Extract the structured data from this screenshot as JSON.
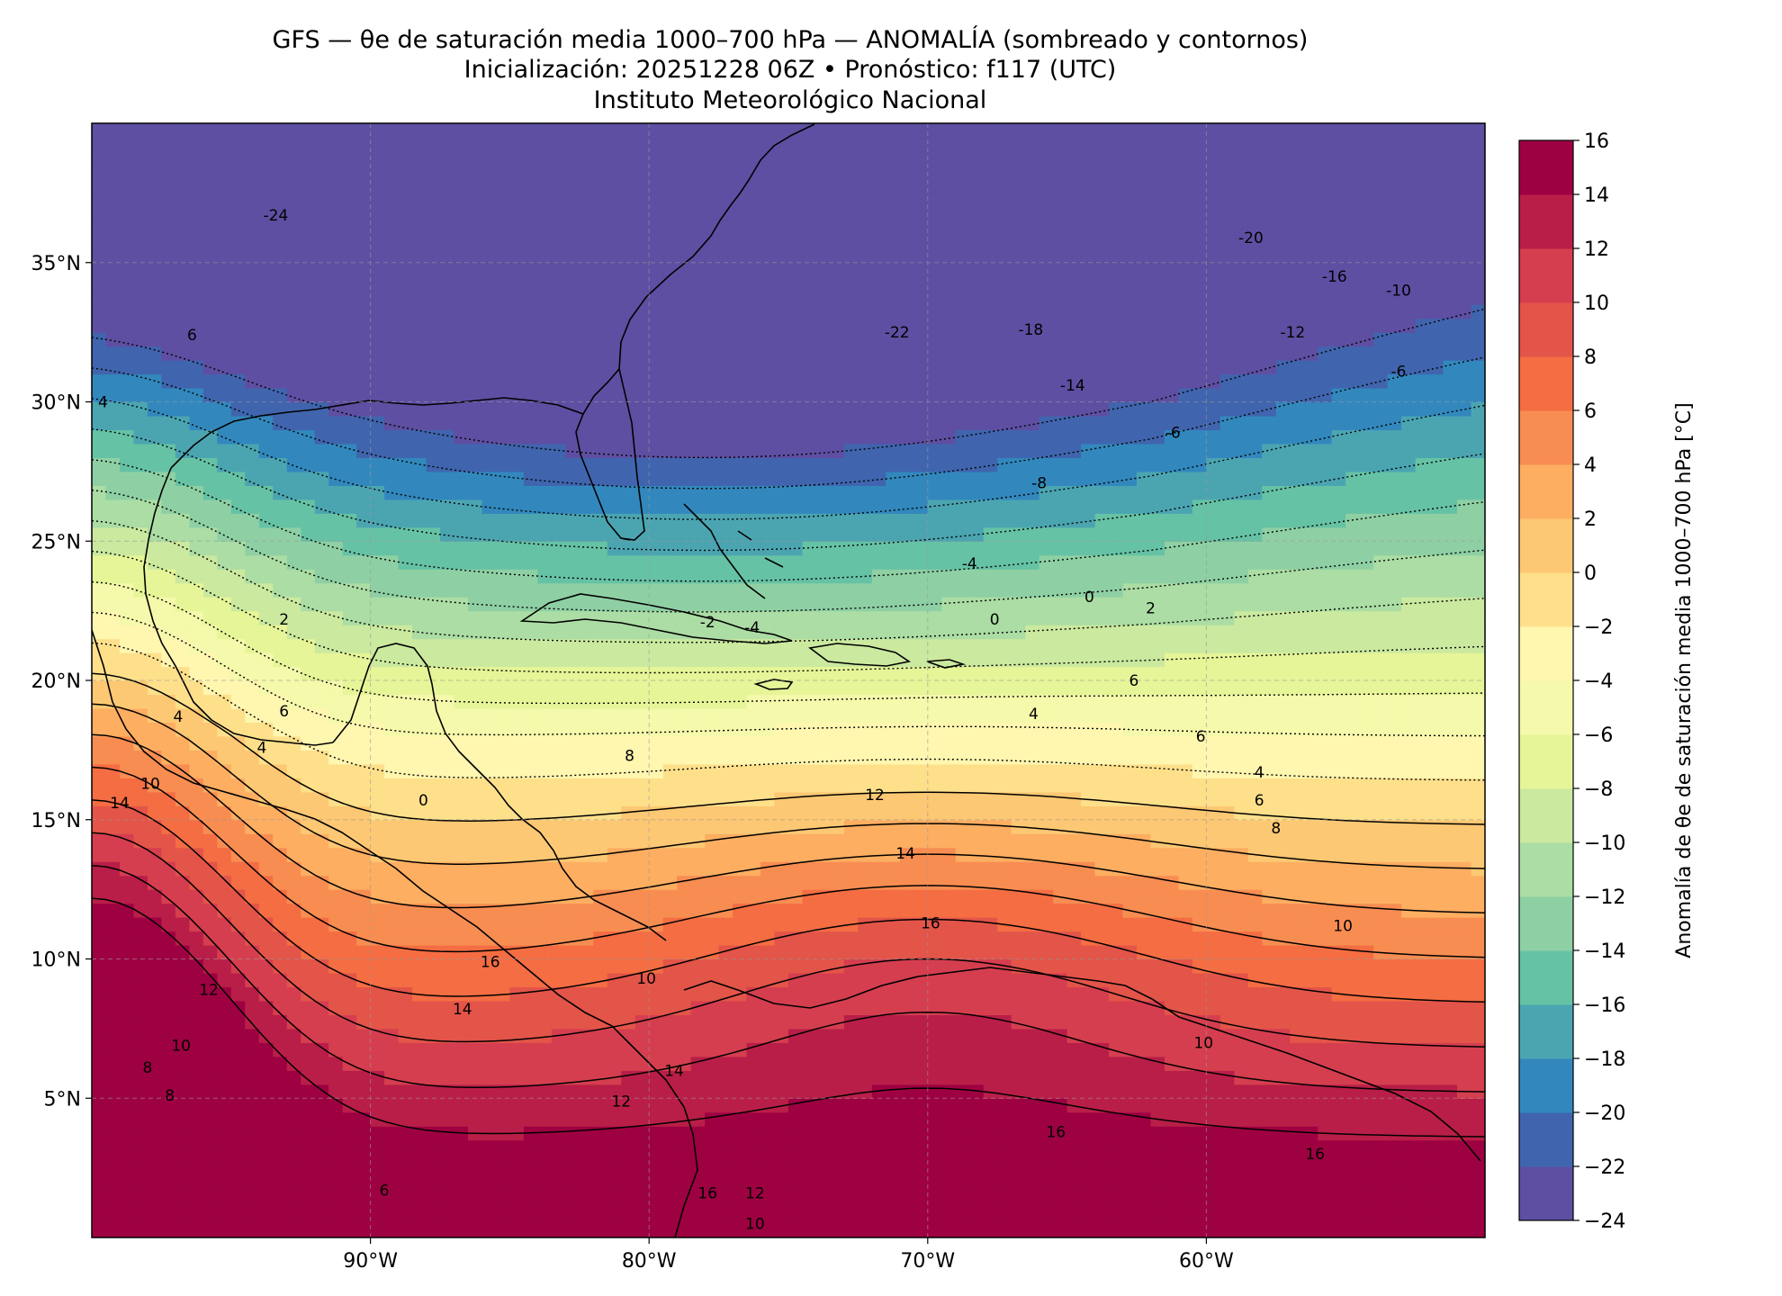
{
  "title": {
    "line1": "GFS — θe de saturación media 1000–700 hPa — ANOMALÍA (sombreado y contornos)",
    "line2": "Inicialización: 20251228 06Z   •   Pronóstico: f117 (UTC)",
    "line3": "Instituto Meteorológico Nacional"
  },
  "map": {
    "lon_range": [
      -100,
      -50
    ],
    "lat_range": [
      0,
      40
    ],
    "lon_ticks": [
      {
        "value": -90,
        "label": "90°W"
      },
      {
        "value": -80,
        "label": "80°W"
      },
      {
        "value": -70,
        "label": "70°W"
      },
      {
        "value": -60,
        "label": "60°W"
      }
    ],
    "lat_ticks": [
      {
        "value": 35,
        "label": "35°N"
      },
      {
        "value": 30,
        "label": "30°N"
      },
      {
        "value": 25,
        "label": "25°N"
      },
      {
        "value": 20,
        "label": "20°N"
      },
      {
        "value": 15,
        "label": "15°N"
      },
      {
        "value": 10,
        "label": "10°N"
      },
      {
        "value": 5,
        "label": "5°N"
      }
    ],
    "gridlines": true
  },
  "colorbar": {
    "title": "Anomalía de θe de saturación media 1000–700 hPa [°C]",
    "levels": [
      -24,
      -22,
      -20,
      -18,
      -16,
      -14,
      -12,
      -10,
      -8,
      -6,
      -4,
      -2,
      0,
      2,
      4,
      6,
      8,
      10,
      12,
      14,
      16
    ],
    "tick_labels": [
      "−24",
      "−22",
      "−20",
      "−18",
      "−16",
      "−14",
      "−12",
      "−10",
      "−8",
      "−6",
      "−4",
      "−2",
      "0",
      "2",
      "4",
      "6",
      "8",
      "10",
      "12",
      "14",
      "16"
    ],
    "colors": [
      "#5e4fa2",
      "#4065ae",
      "#3288bd",
      "#4ba5b1",
      "#66c2a5",
      "#8ed0a4",
      "#abdda4",
      "#cbe99f",
      "#e6f598",
      "#f4f9ab",
      "#fff6b0",
      "#fee08b",
      "#fdc873",
      "#fdae61",
      "#f88d52",
      "#f46d43",
      "#e35449",
      "#d53e4f",
      "#b91e48",
      "#9e0142"
    ]
  },
  "contour_labels": [
    {
      "text": "-24",
      "lon": -93.4,
      "lat": 36.7
    },
    {
      "text": "-22",
      "lon": -71.1,
      "lat": 32.5
    },
    {
      "text": "-20",
      "lon": -58.4,
      "lat": 35.9
    },
    {
      "text": "-18",
      "lon": -66.3,
      "lat": 32.6
    },
    {
      "text": "-16",
      "lon": -55.4,
      "lat": 34.5
    },
    {
      "text": "-14",
      "lon": -64.8,
      "lat": 30.6
    },
    {
      "text": "-12",
      "lon": -56.9,
      "lat": 32.5
    },
    {
      "text": "-10",
      "lon": -53.1,
      "lat": 34.0
    },
    {
      "text": "-6",
      "lon": -53.1,
      "lat": 31.1
    },
    {
      "text": "-6",
      "lon": -61.2,
      "lat": 28.9
    },
    {
      "text": "-8",
      "lon": -66.0,
      "lat": 27.1
    },
    {
      "text": "-4",
      "lon": -68.5,
      "lat": 24.2
    },
    {
      "text": "-2",
      "lon": -77.9,
      "lat": 22.1
    },
    {
      "text": "-4",
      "lon": -76.3,
      "lat": 21.9
    },
    {
      "text": "0",
      "lon": -67.6,
      "lat": 22.2
    },
    {
      "text": "0",
      "lon": -64.2,
      "lat": 23.0
    },
    {
      "text": "2",
      "lon": -62.0,
      "lat": 22.6
    },
    {
      "text": "6",
      "lon": -62.6,
      "lat": 20.0
    },
    {
      "text": "4",
      "lon": -66.2,
      "lat": 18.8
    },
    {
      "text": "6",
      "lon": -60.2,
      "lat": 18.0
    },
    {
      "text": "4",
      "lon": -58.1,
      "lat": 16.7
    },
    {
      "text": "6",
      "lon": -58.1,
      "lat": 15.7
    },
    {
      "text": "8",
      "lon": -57.5,
      "lat": 14.7
    },
    {
      "text": "8",
      "lon": -80.7,
      "lat": 17.3
    },
    {
      "text": "12",
      "lon": -71.9,
      "lat": 15.9
    },
    {
      "text": "14",
      "lon": -70.8,
      "lat": 13.8
    },
    {
      "text": "16",
      "lon": -69.9,
      "lat": 11.3
    },
    {
      "text": "10",
      "lon": -55.1,
      "lat": 11.2
    },
    {
      "text": "10",
      "lon": -60.1,
      "lat": 7.0
    },
    {
      "text": "16",
      "lon": -56.1,
      "lat": 3.0
    },
    {
      "text": "16",
      "lon": -65.4,
      "lat": 3.8
    },
    {
      "text": "6",
      "lon": -96.4,
      "lat": 32.4
    },
    {
      "text": "4",
      "lon": -99.6,
      "lat": 30.0
    },
    {
      "text": "2",
      "lon": -93.1,
      "lat": 22.2
    },
    {
      "text": "6",
      "lon": -93.1,
      "lat": 18.9
    },
    {
      "text": "4",
      "lon": -96.9,
      "lat": 18.7
    },
    {
      "text": "4",
      "lon": -93.9,
      "lat": 17.6
    },
    {
      "text": "10",
      "lon": -97.9,
      "lat": 16.3
    },
    {
      "text": "14",
      "lon": -99.0,
      "lat": 15.6
    },
    {
      "text": "0",
      "lon": -88.1,
      "lat": 15.7
    },
    {
      "text": "16",
      "lon": -85.7,
      "lat": 9.9
    },
    {
      "text": "12",
      "lon": -95.8,
      "lat": 8.9
    },
    {
      "text": "14",
      "lon": -86.7,
      "lat": 8.2
    },
    {
      "text": "10",
      "lon": -96.8,
      "lat": 6.9
    },
    {
      "text": "8",
      "lon": -98.0,
      "lat": 6.1
    },
    {
      "text": "8",
      "lon": -97.2,
      "lat": 5.1
    },
    {
      "text": "12",
      "lon": -81.0,
      "lat": 4.9
    },
    {
      "text": "6",
      "lon": -89.5,
      "lat": 1.7
    },
    {
      "text": "14",
      "lon": -79.1,
      "lat": 6.0
    },
    {
      "text": "16",
      "lon": -77.9,
      "lat": 1.6
    },
    {
      "text": "12",
      "lon": -76.2,
      "lat": 1.6
    },
    {
      "text": "10",
      "lon": -76.2,
      "lat": 0.5
    },
    {
      "text": "10",
      "lon": -80.1,
      "lat": 9.3
    }
  ]
}
